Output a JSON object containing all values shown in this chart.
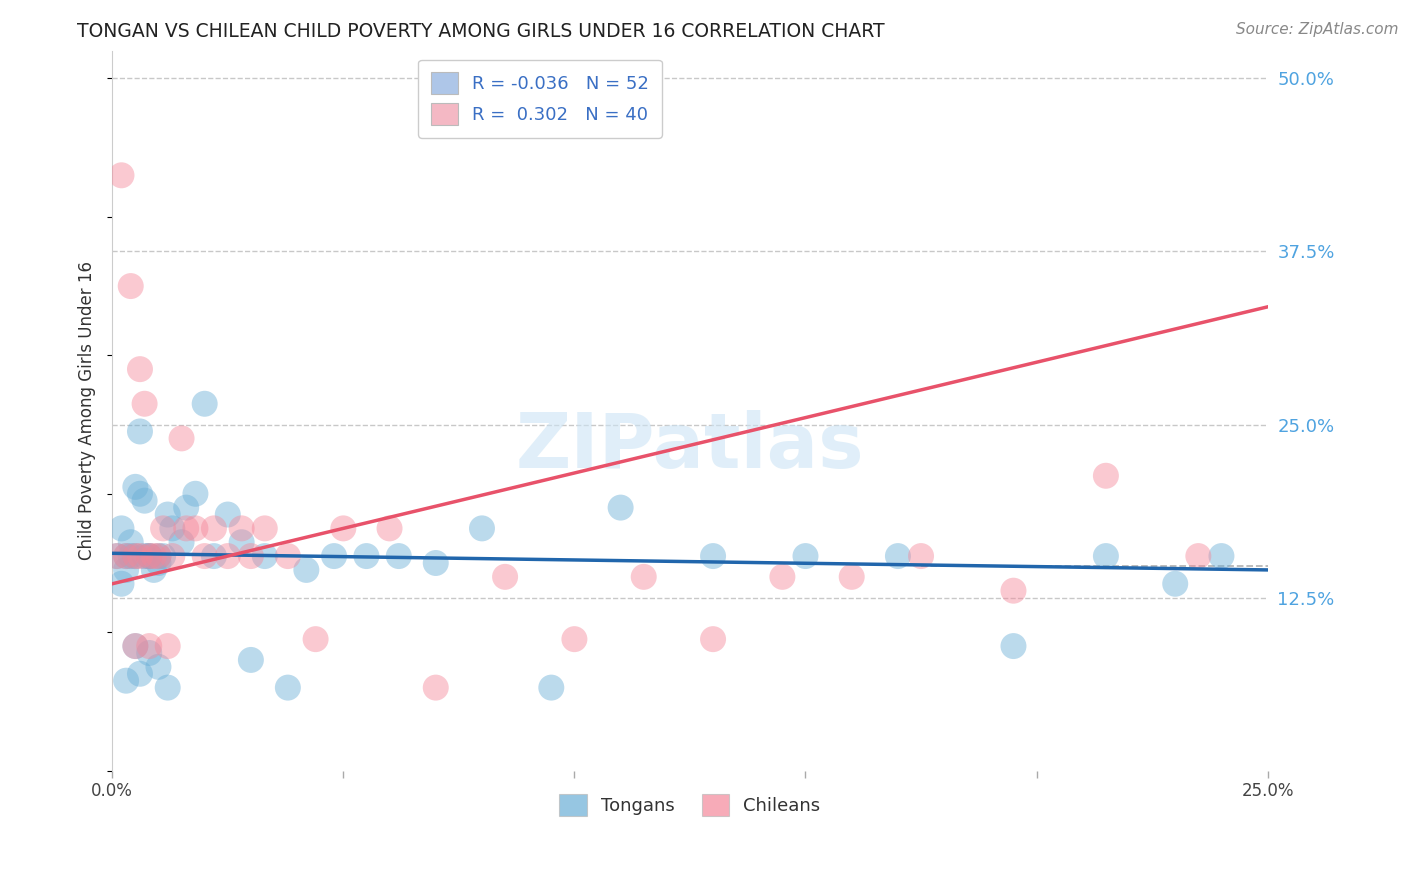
{
  "title": "TONGAN VS CHILEAN CHILD POVERTY AMONG GIRLS UNDER 16 CORRELATION CHART",
  "source": "Source: ZipAtlas.com",
  "ylabel_label": "Child Poverty Among Girls Under 16",
  "right_ytick_labels": [
    "50.0%",
    "37.5%",
    "25.0%",
    "12.5%"
  ],
  "right_ytick_vals": [
    0.5,
    0.375,
    0.25,
    0.125
  ],
  "xlim": [
    0.0,
    0.25
  ],
  "ylim": [
    0.0,
    0.52
  ],
  "watermark": "ZIPatlas",
  "legend_r_entries": [
    {
      "label": "R = -0.036   N = 52",
      "facecolor": "#aec6e8"
    },
    {
      "label": "R =  0.302   N = 40",
      "facecolor": "#f4b8c4"
    }
  ],
  "legend_bottom": [
    "Tongans",
    "Chileans"
  ],
  "tongans_color": "#6aaed6",
  "chileans_color": "#f4889a",
  "tongans_line_color": "#2166ac",
  "chileans_line_color": "#e8526a",
  "grid_color": "#c8c8c8",
  "dashed_line_color": "#aaaaaa",
  "background_color": "#ffffff",
  "tongans_x": [
    0.001,
    0.002,
    0.002,
    0.003,
    0.003,
    0.004,
    0.004,
    0.005,
    0.005,
    0.006,
    0.006,
    0.007,
    0.007,
    0.008,
    0.008,
    0.009,
    0.01,
    0.01,
    0.011,
    0.012,
    0.013,
    0.015,
    0.016,
    0.018,
    0.02,
    0.022,
    0.025,
    0.028,
    0.03,
    0.033,
    0.038,
    0.042,
    0.048,
    0.055,
    0.062,
    0.07,
    0.08,
    0.095,
    0.11,
    0.13,
    0.15,
    0.17,
    0.195,
    0.215,
    0.23,
    0.24,
    0.005,
    0.003,
    0.006,
    0.008,
    0.01,
    0.012
  ],
  "tongans_y": [
    0.155,
    0.175,
    0.135,
    0.155,
    0.145,
    0.165,
    0.155,
    0.205,
    0.155,
    0.245,
    0.2,
    0.195,
    0.155,
    0.155,
    0.155,
    0.145,
    0.155,
    0.15,
    0.155,
    0.185,
    0.175,
    0.165,
    0.19,
    0.2,
    0.265,
    0.155,
    0.185,
    0.165,
    0.08,
    0.155,
    0.06,
    0.145,
    0.155,
    0.155,
    0.155,
    0.15,
    0.175,
    0.06,
    0.19,
    0.155,
    0.155,
    0.155,
    0.09,
    0.155,
    0.135,
    0.155,
    0.09,
    0.065,
    0.07,
    0.085,
    0.075,
    0.06
  ],
  "chileans_x": [
    0.001,
    0.002,
    0.003,
    0.004,
    0.005,
    0.006,
    0.006,
    0.007,
    0.008,
    0.009,
    0.01,
    0.011,
    0.013,
    0.015,
    0.016,
    0.018,
    0.02,
    0.022,
    0.025,
    0.028,
    0.03,
    0.033,
    0.038,
    0.044,
    0.05,
    0.06,
    0.07,
    0.085,
    0.1,
    0.115,
    0.13,
    0.145,
    0.16,
    0.175,
    0.195,
    0.215,
    0.235,
    0.005,
    0.008,
    0.012
  ],
  "chileans_y": [
    0.155,
    0.43,
    0.155,
    0.35,
    0.155,
    0.155,
    0.29,
    0.265,
    0.155,
    0.155,
    0.155,
    0.175,
    0.155,
    0.24,
    0.175,
    0.175,
    0.155,
    0.175,
    0.155,
    0.175,
    0.155,
    0.175,
    0.155,
    0.095,
    0.175,
    0.175,
    0.06,
    0.14,
    0.095,
    0.14,
    0.095,
    0.14,
    0.14,
    0.155,
    0.13,
    0.213,
    0.155,
    0.09,
    0.09,
    0.09
  ]
}
